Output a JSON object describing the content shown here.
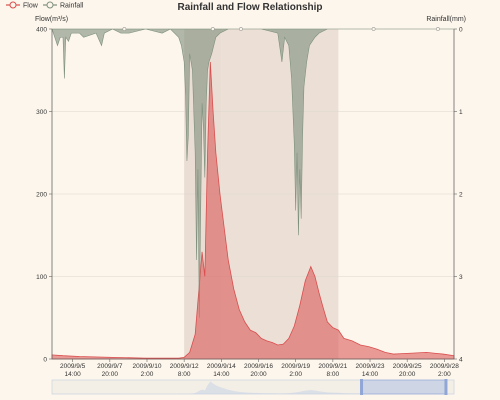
{
  "chart_data": {
    "type": "area",
    "title": "Rainfall and Flow Relationship",
    "legend": {
      "placement": "top-left",
      "items": [
        "Flow",
        "Rainfall"
      ]
    },
    "colors": {
      "flow": "#d94e4e",
      "rainfall": "#7e907d",
      "mark_area": "#e6d8cf",
      "background": "#fdf6ec"
    },
    "x_axis": {
      "type": "time",
      "range": [
        "2009-09-04 08:00",
        "2009-09-28 16:00"
      ],
      "ticks": [
        {
          "x": "2009-09-05 14:00",
          "label": [
            "2009/9/5",
            "14:00"
          ]
        },
        {
          "x": "2009-09-07 20:00",
          "label": [
            "2009/9/7",
            "20:00"
          ]
        },
        {
          "x": "2009-09-10 02:00",
          "label": [
            "2009/9/10",
            "2:00"
          ]
        },
        {
          "x": "2009-09-12 08:00",
          "label": [
            "2009/9/12",
            "8:00"
          ]
        },
        {
          "x": "2009-09-14 14:00",
          "label": [
            "2009/9/14",
            "14:00"
          ]
        },
        {
          "x": "2009-09-16 20:00",
          "label": [
            "2009/9/16",
            "20:00"
          ]
        },
        {
          "x": "2009-09-19 02:00",
          "label": [
            "2009/9/19",
            "2:00"
          ]
        },
        {
          "x": "2009-09-21 08:00",
          "label": [
            "2009/9/21",
            "8:00"
          ]
        },
        {
          "x": "2009-09-23 14:00",
          "label": [
            "2009/9/23",
            "14:00"
          ]
        },
        {
          "x": "2009-09-25 20:00",
          "label": [
            "2009/9/25",
            "20:00"
          ]
        },
        {
          "x": "2009-09-28 02:00",
          "label": [
            "2009/9/28",
            "2:00"
          ]
        }
      ]
    },
    "y_left": {
      "name": "Flow(m³/s)",
      "range": [
        0,
        400
      ],
      "ticks": [
        0,
        100,
        200,
        300,
        400
      ],
      "grid": true
    },
    "y_right": {
      "name": "Rainfall(mm)",
      "range": [
        0,
        4
      ],
      "ticks": [
        0,
        1,
        2,
        3,
        4
      ],
      "inverse": true
    },
    "mark_areas": [
      {
        "from": "2009-09-12 08:00",
        "to": "2009-09-14 14:00"
      },
      {
        "from": "2009-09-14 14:00",
        "to": "2009-09-21 16:00"
      }
    ],
    "series": [
      {
        "name": "Flow",
        "axis": "left",
        "points": [
          [
            "2009-09-04 08:00",
            5
          ],
          [
            "2009-09-05 00:00",
            4
          ],
          [
            "2009-09-06 00:00",
            3
          ],
          [
            "2009-09-08 00:00",
            2
          ],
          [
            "2009-09-10 00:00",
            1
          ],
          [
            "2009-09-12 00:00",
            1
          ],
          [
            "2009-09-12 08:00",
            2
          ],
          [
            "2009-09-12 16:00",
            8
          ],
          [
            "2009-09-13 00:00",
            30
          ],
          [
            "2009-09-13 06:00",
            90
          ],
          [
            "2009-09-13 10:00",
            130
          ],
          [
            "2009-09-13 14:00",
            100
          ],
          [
            "2009-09-13 18:00",
            250
          ],
          [
            "2009-09-13 22:00",
            360
          ],
          [
            "2009-09-14 02:00",
            300
          ],
          [
            "2009-09-14 06:00",
            250
          ],
          [
            "2009-09-14 12:00",
            200
          ],
          [
            "2009-09-14 18:00",
            160
          ],
          [
            "2009-09-15 00:00",
            120
          ],
          [
            "2009-09-15 08:00",
            85
          ],
          [
            "2009-09-15 16:00",
            60
          ],
          [
            "2009-09-16 00:00",
            45
          ],
          [
            "2009-09-16 08:00",
            35
          ],
          [
            "2009-09-16 16:00",
            32
          ],
          [
            "2009-09-17 00:00",
            25
          ],
          [
            "2009-09-17 08:00",
            22
          ],
          [
            "2009-09-17 16:00",
            20
          ],
          [
            "2009-09-18 00:00",
            17
          ],
          [
            "2009-09-18 08:00",
            18
          ],
          [
            "2009-09-18 16:00",
            25
          ],
          [
            "2009-09-19 00:00",
            40
          ],
          [
            "2009-09-19 08:00",
            65
          ],
          [
            "2009-09-19 16:00",
            95
          ],
          [
            "2009-09-20 00:00",
            112
          ],
          [
            "2009-09-20 06:00",
            100
          ],
          [
            "2009-09-20 12:00",
            80
          ],
          [
            "2009-09-20 18:00",
            62
          ],
          [
            "2009-09-21 00:00",
            45
          ],
          [
            "2009-09-21 08:00",
            38
          ],
          [
            "2009-09-21 16:00",
            35
          ],
          [
            "2009-09-22 00:00",
            25
          ],
          [
            "2009-09-22 12:00",
            22
          ],
          [
            "2009-09-23 00:00",
            17
          ],
          [
            "2009-09-23 12:00",
            15
          ],
          [
            "2009-09-24 00:00",
            12
          ],
          [
            "2009-09-24 12:00",
            8
          ],
          [
            "2009-09-25 00:00",
            6
          ],
          [
            "2009-09-26 00:00",
            7
          ],
          [
            "2009-09-27 00:00",
            8
          ],
          [
            "2009-09-27 12:00",
            7
          ],
          [
            "2009-09-28 00:00",
            6
          ],
          [
            "2009-09-28 16:00",
            4
          ]
        ]
      },
      {
        "name": "Rainfall",
        "axis": "right",
        "points": [
          [
            "2009-09-04 08:00",
            0
          ],
          [
            "2009-09-04 12:00",
            0.1
          ],
          [
            "2009-09-04 16:00",
            0.2
          ],
          [
            "2009-09-04 20:00",
            0.1
          ],
          [
            "2009-09-05 00:00",
            0.1
          ],
          [
            "2009-09-05 02:00",
            0.6
          ],
          [
            "2009-09-05 04:00",
            0.1
          ],
          [
            "2009-09-05 08:00",
            0.15
          ],
          [
            "2009-09-05 12:00",
            0.05
          ],
          [
            "2009-09-06 00:00",
            0.05
          ],
          [
            "2009-09-06 06:00",
            0.1
          ],
          [
            "2009-09-07 00:00",
            0.05
          ],
          [
            "2009-09-07 08:00",
            0.2
          ],
          [
            "2009-09-07 12:00",
            0.05
          ],
          [
            "2009-09-08 00:00",
            0
          ],
          [
            "2009-09-08 12:00",
            0.05
          ],
          [
            "2009-09-09 00:00",
            0.05
          ],
          [
            "2009-09-10 00:00",
            0
          ],
          [
            "2009-09-11 00:00",
            0.05
          ],
          [
            "2009-09-11 12:00",
            0
          ],
          [
            "2009-09-12 00:00",
            0.1
          ],
          [
            "2009-09-12 04:00",
            0.2
          ],
          [
            "2009-09-12 08:00",
            0.4
          ],
          [
            "2009-09-12 10:00",
            0.8
          ],
          [
            "2009-09-12 12:00",
            1.6
          ],
          [
            "2009-09-12 14:00",
            1.3
          ],
          [
            "2009-09-12 16:00",
            0.3
          ],
          [
            "2009-09-12 20:00",
            0.5
          ],
          [
            "2009-09-13 00:00",
            1.5
          ],
          [
            "2009-09-13 02:00",
            2.8
          ],
          [
            "2009-09-13 04:00",
            1.7
          ],
          [
            "2009-09-13 06:00",
            3.5
          ],
          [
            "2009-09-13 08:00",
            2.2
          ],
          [
            "2009-09-13 10:00",
            0.9
          ],
          [
            "2009-09-13 12:00",
            1.2
          ],
          [
            "2009-09-13 14:00",
            1.8
          ],
          [
            "2009-09-13 16:00",
            0.9
          ],
          [
            "2009-09-13 18:00",
            0.5
          ],
          [
            "2009-09-13 20:00",
            0.4
          ],
          [
            "2009-09-14 00:00",
            0.3
          ],
          [
            "2009-09-14 06:00",
            0.1
          ],
          [
            "2009-09-14 12:00",
            0.05
          ],
          [
            "2009-09-15 00:00",
            0
          ],
          [
            "2009-09-16 00:00",
            0
          ],
          [
            "2009-09-17 00:00",
            0
          ],
          [
            "2009-09-18 00:00",
            0.05
          ],
          [
            "2009-09-18 06:00",
            0.4
          ],
          [
            "2009-09-18 10:00",
            0.1
          ],
          [
            "2009-09-18 16:00",
            0.2
          ],
          [
            "2009-09-18 20:00",
            0.6
          ],
          [
            "2009-09-19 00:00",
            1.4
          ],
          [
            "2009-09-19 02:00",
            2.2
          ],
          [
            "2009-09-19 04:00",
            1.5
          ],
          [
            "2009-09-19 06:00",
            2.5
          ],
          [
            "2009-09-19 08:00",
            1.7
          ],
          [
            "2009-09-19 10:00",
            2.3
          ],
          [
            "2009-09-19 12:00",
            1.3
          ],
          [
            "2009-09-19 14:00",
            0.7
          ],
          [
            "2009-09-19 18:00",
            0.4
          ],
          [
            "2009-09-19 22:00",
            0.2
          ],
          [
            "2009-09-20 06:00",
            0.1
          ],
          [
            "2009-09-20 12:00",
            0.05
          ],
          [
            "2009-09-21 00:00",
            0
          ],
          [
            "2009-09-28 16:00",
            0
          ]
        ]
      }
    ]
  },
  "data_zoom": {
    "start_fraction": 0.77,
    "end_fraction": 0.98
  }
}
